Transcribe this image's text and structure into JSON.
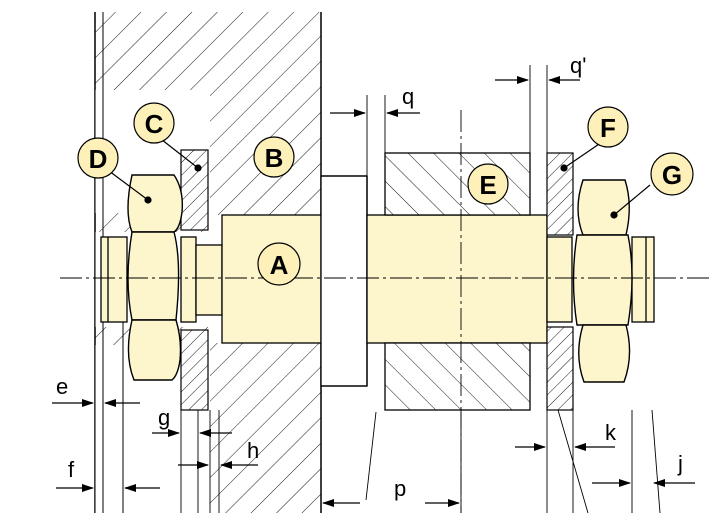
{
  "parts": {
    "A": "A",
    "B": "B",
    "C": "C",
    "D": "D",
    "E": "E",
    "F": "F",
    "G": "G"
  },
  "dimensions": {
    "q": "q",
    "q_prime": "q'",
    "e": "e",
    "f": "f",
    "g": "g",
    "h": "h",
    "p": "p",
    "k": "k",
    "j": "j"
  },
  "colors": {
    "part_fill": "#fdf5cc",
    "bubble_fill": "#fdf0b8",
    "line": "#000000",
    "hatch": "#000000",
    "background": "#ffffff"
  }
}
